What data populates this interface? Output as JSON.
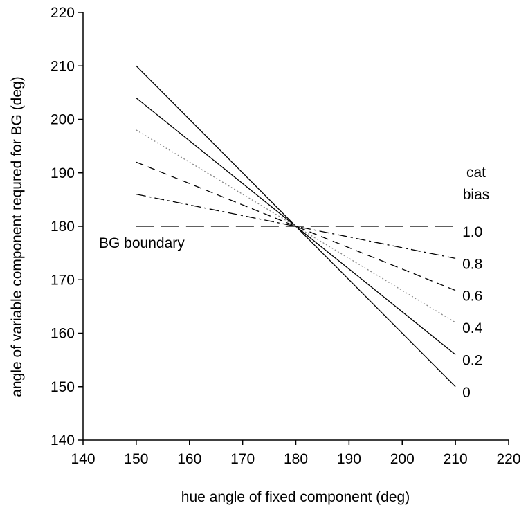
{
  "chart_data": {
    "type": "line",
    "title": "",
    "xlabel": "hue angle of fixed component (deg)",
    "ylabel": "angle of variable component requred for BG (deg)",
    "xlim": [
      140,
      220
    ],
    "ylim": [
      140,
      220
    ],
    "xticks": [
      140,
      150,
      160,
      170,
      180,
      190,
      200,
      210,
      220
    ],
    "yticks": [
      140,
      150,
      160,
      170,
      180,
      190,
      200,
      210,
      220
    ],
    "grid": false,
    "legend_title": [
      "cat",
      "bias"
    ],
    "series": [
      {
        "name": "0",
        "x": [
          150,
          210
        ],
        "y": [
          210,
          150
        ],
        "style": "solid"
      },
      {
        "name": "0.2",
        "x": [
          150,
          210
        ],
        "y": [
          204,
          156
        ],
        "style": "solid"
      },
      {
        "name": "0.4",
        "x": [
          150,
          210
        ],
        "y": [
          198,
          162
        ],
        "style": "dotted"
      },
      {
        "name": "0.6",
        "x": [
          150,
          210
        ],
        "y": [
          192,
          168
        ],
        "style": "dashed"
      },
      {
        "name": "0.8",
        "x": [
          150,
          210
        ],
        "y": [
          186,
          174
        ],
        "style": "dashdot"
      },
      {
        "name": "1.0",
        "x": [
          150,
          210
        ],
        "y": [
          180,
          180
        ],
        "style": "longdash"
      }
    ],
    "annotations": [
      {
        "text": "BG boundary"
      }
    ],
    "colors": {
      "line": "#000000",
      "dotted": "#888888",
      "axis": "#000000"
    }
  }
}
